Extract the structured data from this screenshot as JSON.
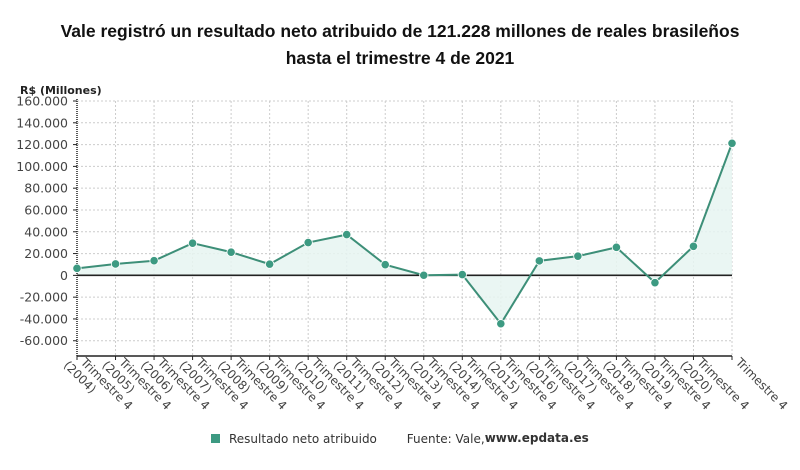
{
  "title": {
    "line1": "Vale registró un resultado neto atribuido de 121.228 millones de reales brasileños",
    "line2": "hasta el trimestre 4 de 2021"
  },
  "legend": {
    "series_label": "Resultado neto atribuido",
    "source_prefix": "Fuente: Vale, ",
    "source_site": "www.epdata.es"
  },
  "colors": {
    "line": "#3d8f78",
    "marker": "#3d9a82",
    "fill": "#e6f4f1",
    "grid": "#cccccc",
    "axis": "#222222"
  },
  "chart_data": {
    "type": "line",
    "title": "Vale registró un resultado neto atribuido de 121.228 millones de reales brasileños hasta el trimestre 4 de 2021",
    "ylabel": "R$ (Millones)",
    "xlabel": "",
    "ylim": [
      -74000,
      160000
    ],
    "yticks": [
      -60000,
      -40000,
      -20000,
      0,
      20000,
      40000,
      60000,
      80000,
      100000,
      120000,
      140000,
      160000
    ],
    "ytick_labels": [
      "-60.000",
      "-40.000",
      "-20.000",
      "0",
      "20.000",
      "40.000",
      "60.000",
      "80.000",
      "100.000",
      "120.000",
      "140.000",
      "160.000"
    ],
    "grid": true,
    "legend_position": "bottom",
    "categories": [
      [
        "Trimestre 4",
        "(2004)"
      ],
      [
        "Trimestre 4",
        "(2005)"
      ],
      [
        "Trimestre 4",
        "(2006)"
      ],
      [
        "Trimestre 4",
        "(2007)"
      ],
      [
        "Trimestre 4",
        "(2008)"
      ],
      [
        "Trimestre 4",
        "(2009)"
      ],
      [
        "Trimestre 4",
        "(2010)"
      ],
      [
        "Trimestre 4",
        "(2011)"
      ],
      [
        "Trimestre 4",
        "(2012)"
      ],
      [
        "Trimestre 4",
        "(2013)"
      ],
      [
        "Trimestre 4",
        "(2014)"
      ],
      [
        "Trimestre 4",
        "(2015)"
      ],
      [
        "Trimestre 4",
        "(2016)"
      ],
      [
        "Trimestre 4",
        "(2017)"
      ],
      [
        "Trimestre 4",
        "(2018)"
      ],
      [
        "Trimestre 4",
        "(2019)"
      ],
      [
        "Trimestre 4",
        "(2020)"
      ],
      [
        "Trimestre 4",
        ""
      ]
    ],
    "series": [
      {
        "name": "Resultado neto atribuido",
        "values": [
          6460,
          10443,
          13431,
          29500,
          21300,
          10300,
          30100,
          37400,
          9800,
          100,
          700,
          -44400,
          13300,
          17600,
          25700,
          -6700,
          26700,
          121228
        ]
      }
    ]
  }
}
